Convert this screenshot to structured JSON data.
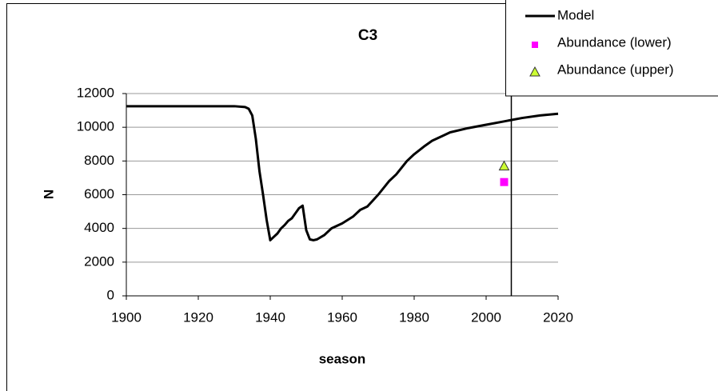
{
  "chart_data": {
    "type": "line",
    "title": "C3",
    "x_label": "season",
    "y_label": "N",
    "xlim": [
      1900,
      2020
    ],
    "xticks": [
      1900,
      1920,
      1940,
      1960,
      1980,
      2000,
      2020
    ],
    "ylim": [
      0,
      12000
    ],
    "yticks": [
      0,
      2000,
      4000,
      6000,
      8000,
      10000,
      12000
    ],
    "grid": true,
    "legend": "top-right",
    "vline_x": 2007,
    "series": [
      {
        "name": "Model",
        "color": "#000000",
        "marker": "none",
        "x": [
          1900,
          1930,
          1933,
          1934,
          1935,
          1936,
          1937,
          1938,
          1939,
          1940,
          1941,
          1942,
          1943,
          1944,
          1945,
          1946,
          1947,
          1948,
          1949,
          1950,
          1951,
          1952,
          1953,
          1955,
          1957,
          1960,
          1963,
          1965,
          1967,
          1970,
          1973,
          1975,
          1978,
          1980,
          1983,
          1985,
          1988,
          1990,
          1995,
          2000,
          2005,
          2010,
          2015,
          2020
        ],
        "values": [
          11250,
          11250,
          11200,
          11100,
          10700,
          9300,
          7400,
          6000,
          4500,
          3300,
          3500,
          3700,
          4000,
          4200,
          4450,
          4600,
          4900,
          5200,
          5350,
          3900,
          3350,
          3300,
          3350,
          3600,
          4000,
          4300,
          4700,
          5100,
          5300,
          6000,
          6800,
          7200,
          8000,
          8400,
          8900,
          9200,
          9500,
          9700,
          9950,
          10150,
          10350,
          10550,
          10700,
          10800
        ]
      },
      {
        "name": "Abundance (lower)",
        "color": "#ff00ff",
        "marker": "square",
        "x": [
          2005
        ],
        "values": [
          6750
        ]
      },
      {
        "name": "Abundance (upper)",
        "color": "#ccff33",
        "marker": "triangle",
        "x": [
          2005
        ],
        "values": [
          7700
        ]
      }
    ]
  }
}
